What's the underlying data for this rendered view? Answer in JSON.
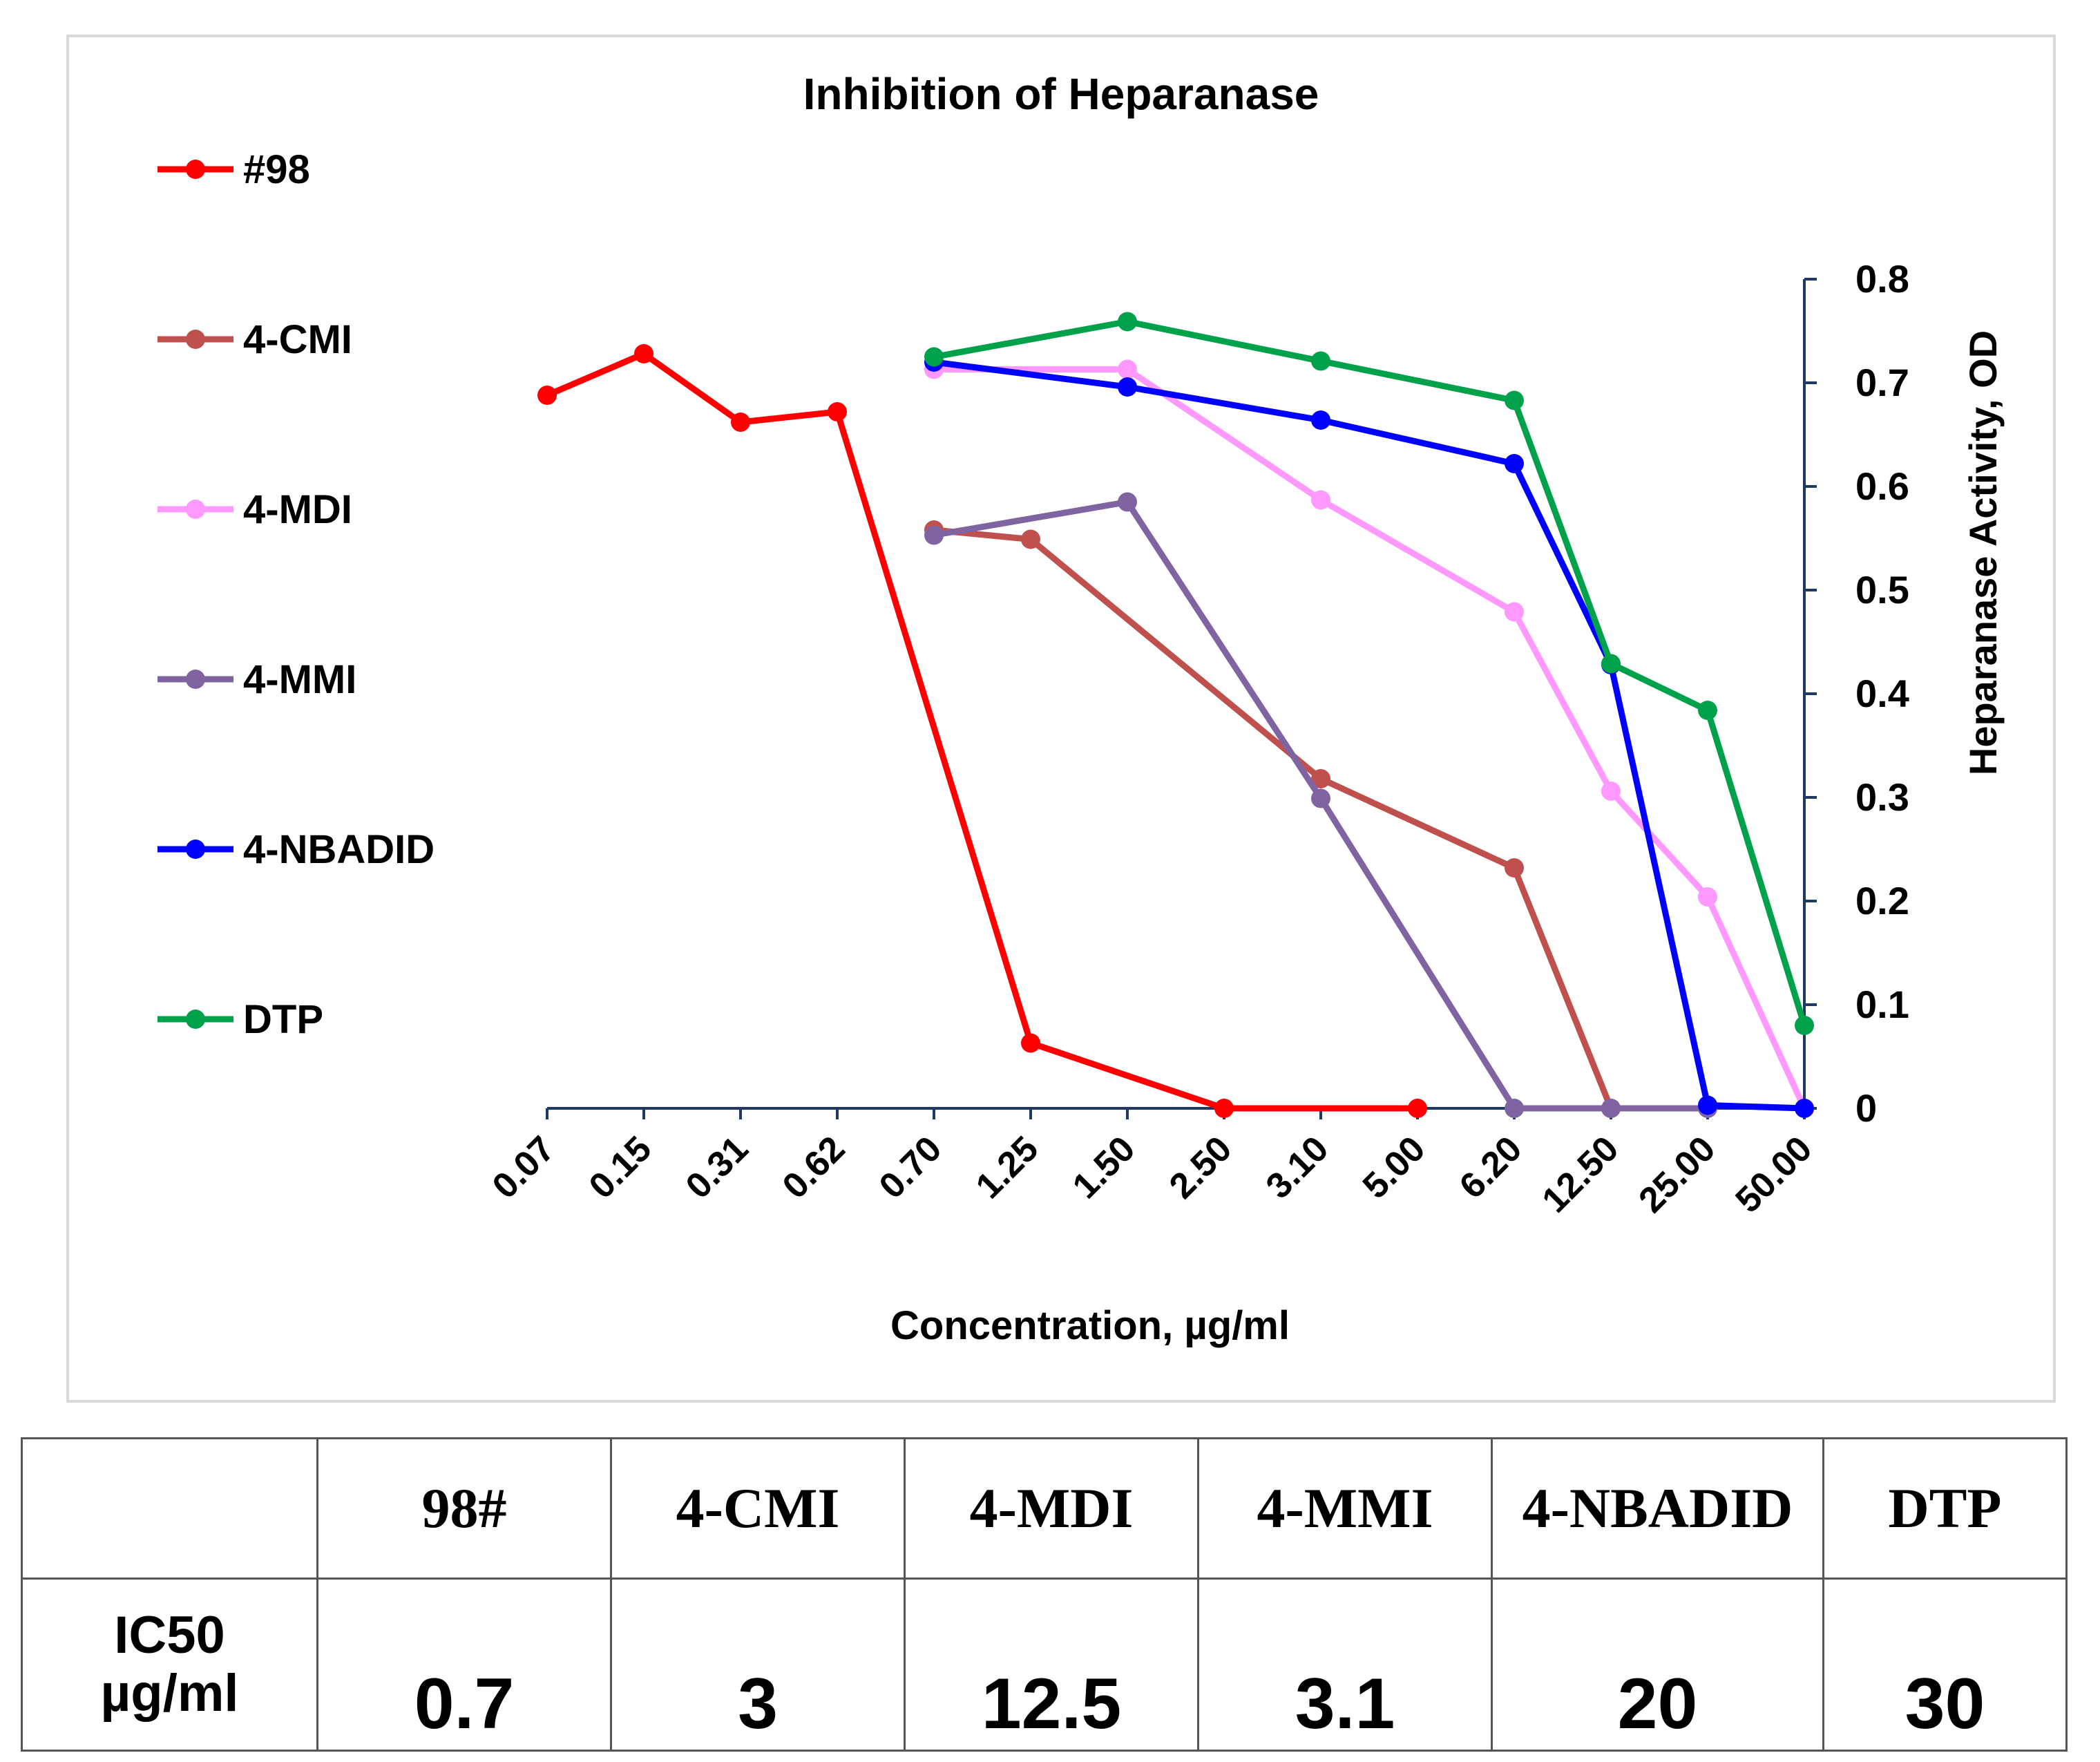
{
  "chart_data": {
    "type": "line",
    "title": "Inhibition of Heparanase",
    "xlabel": "Concentration, µg/ml",
    "ylabel": "Heparanase Activity, OD",
    "ylim": [
      0,
      0.8
    ],
    "yticks": [
      "0",
      "0.1",
      "0.2",
      "0.3",
      "0.4",
      "0.5",
      "0.6",
      "0.7",
      "0.8"
    ],
    "y_axis_side": "right",
    "categories": [
      "0.07",
      "0.15",
      "0.31",
      "0.62",
      "0.70",
      "1.25",
      "1.50",
      "2.50",
      "3.10",
      "5.00",
      "6.20",
      "12.50",
      "25.00",
      "50.00"
    ],
    "legend_position": "left",
    "series": [
      {
        "name": "#98",
        "color": "#ff0000",
        "values": [
          0.688,
          0.728,
          0.662,
          0.672,
          null,
          0.063,
          null,
          0.0,
          null,
          0.0,
          null,
          null,
          null,
          null
        ]
      },
      {
        "name": "4-CMI",
        "color": "#c0504d",
        "values": [
          null,
          null,
          null,
          null,
          0.558,
          0.549,
          null,
          null,
          0.318,
          null,
          0.232,
          0.0,
          null,
          null
        ]
      },
      {
        "name": "4-MDI",
        "color": "#ff99ff",
        "values": [
          null,
          null,
          null,
          null,
          0.713,
          null,
          0.713,
          null,
          0.587,
          null,
          0.479,
          0.306,
          0.204,
          0.0
        ]
      },
      {
        "name": "4-MMI",
        "color": "#8064a2",
        "values": [
          null,
          null,
          null,
          null,
          0.553,
          null,
          0.585,
          null,
          0.299,
          null,
          0.0,
          0.0,
          0.0,
          null
        ]
      },
      {
        "name": "4-NBADID",
        "color": "#0000ff",
        "values": [
          null,
          null,
          null,
          null,
          0.72,
          null,
          0.696,
          null,
          0.664,
          null,
          0.622,
          0.428,
          0.003,
          0.0
        ]
      },
      {
        "name": "DTP",
        "color": "#00a14b",
        "values": [
          null,
          null,
          null,
          null,
          0.725,
          null,
          0.759,
          null,
          0.721,
          null,
          0.683,
          0.429,
          0.384,
          0.08
        ]
      }
    ]
  },
  "table": {
    "headers": [
      "",
      "98#",
      "4-CMI",
      "4-MDI",
      "4-MMI",
      "4-NBADID",
      "DTP"
    ],
    "row_label_line1": "IC50",
    "row_label_line2": "µg/ml",
    "values": [
      "0.7",
      "3",
      "12.5",
      "3.1",
      "20",
      "30"
    ]
  }
}
